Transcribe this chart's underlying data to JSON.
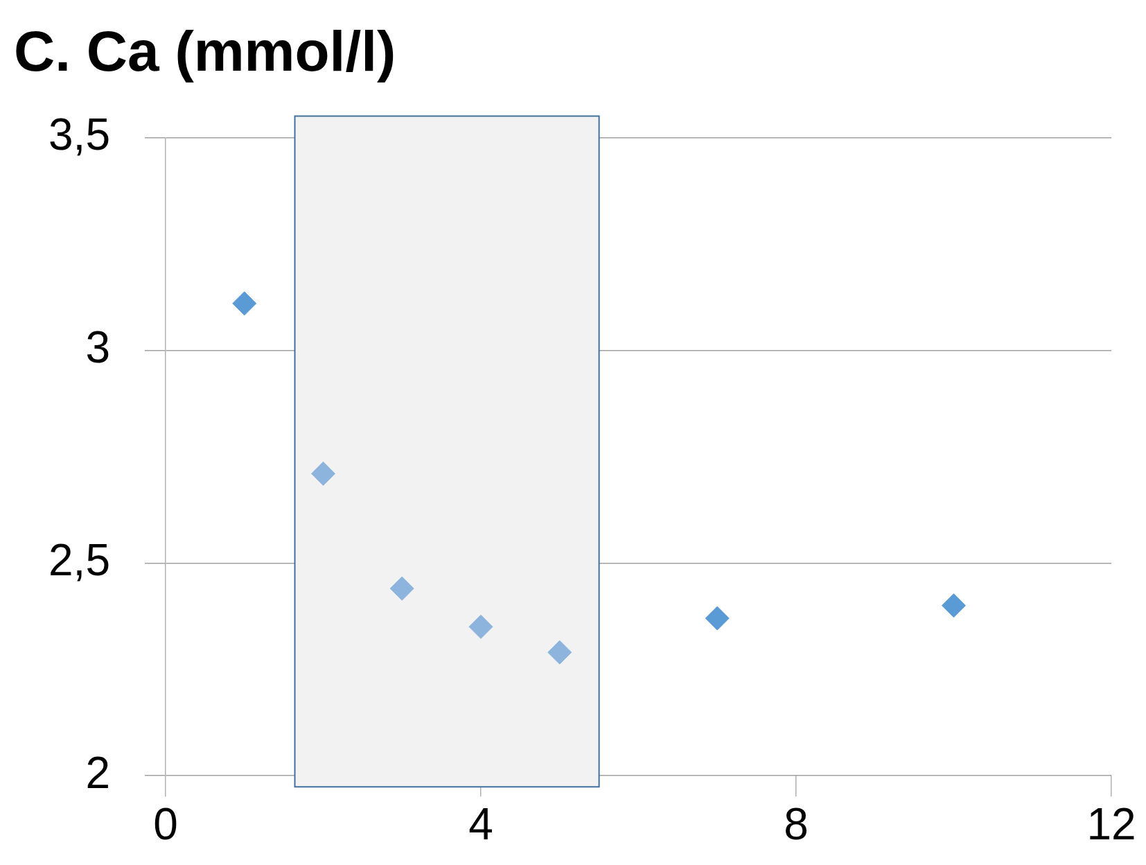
{
  "chart_data": {
    "type": "scatter",
    "title": "C. Ca (mmol/l)",
    "x": [
      1,
      2,
      3,
      4,
      5,
      7,
      10
    ],
    "values": [
      3.11,
      2.71,
      2.44,
      2.35,
      2.29,
      2.37,
      2.4
    ],
    "colors": [
      "#5b9bd5",
      "#8db4dc",
      "#8db4dc",
      "#8db4dc",
      "#8db4dc",
      "#5b9bd5",
      "#5b9bd5"
    ],
    "xlim": [
      0,
      12
    ],
    "xticks": [
      0,
      4,
      8,
      12
    ],
    "ylim": [
      2,
      3.5
    ],
    "yticks": [
      2,
      {
        "value": 2.5,
        "label": "2,5"
      },
      3,
      {
        "value": 3.5,
        "label": "3,5"
      }
    ],
    "bands": [
      {
        "axis": "x",
        "from": 1.64,
        "to": 5.5,
        "color": "#f2f2f2"
      }
    ],
    "grid": "y",
    "marker": "diamond",
    "legend": false
  }
}
